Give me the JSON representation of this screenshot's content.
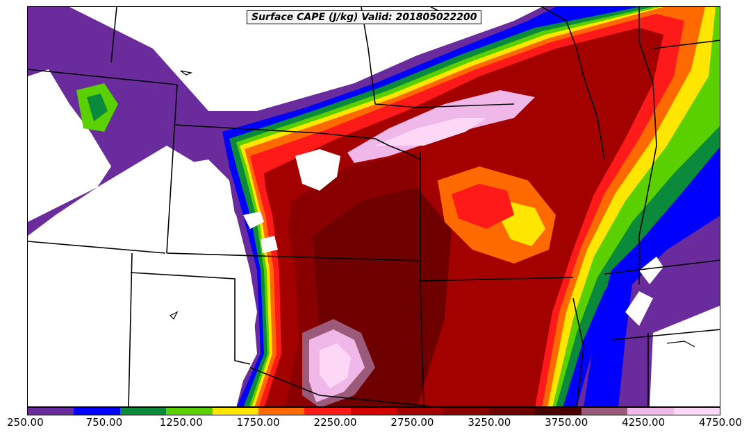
{
  "title": "Surface CAPE (J/kg) Valid: 201805022200",
  "colorbar": {
    "colors": [
      "#6a2c9c",
      "#0000ff",
      "#0a8a3a",
      "#5ad000",
      "#ffe600",
      "#ff6a00",
      "#ff1a1a",
      "#d40000",
      "#a30000",
      "#8a0000",
      "#6e0000",
      "#4a0000",
      "#9c5a7a",
      "#f0b8e8",
      "#fcd8f6"
    ],
    "ticks": [
      {
        "label": "250.00",
        "value": 250
      },
      {
        "label": "750.00",
        "value": 750
      },
      {
        "label": "1250.00",
        "value": 1250
      },
      {
        "label": "1750.00",
        "value": 1750
      },
      {
        "label": "2250.00",
        "value": 2250
      },
      {
        "label": "2750.00",
        "value": 2750
      },
      {
        "label": "3250.00",
        "value": 3250
      },
      {
        "label": "3750.00",
        "value": 3750
      },
      {
        "label": "4250.00",
        "value": 4250
      },
      {
        "label": "4750.00",
        "value": 4750
      }
    ],
    "range": [
      250,
      4750
    ]
  }
}
